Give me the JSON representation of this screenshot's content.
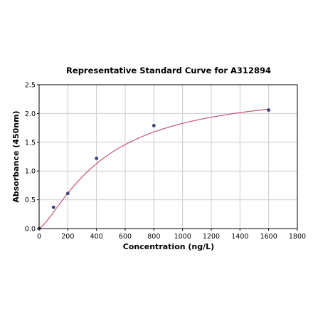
{
  "chart_data": {
    "type": "scatter",
    "title": "Representative Standard Curve for A312894",
    "xlabel": "Concentration (ng/L)",
    "ylabel": "Absorbance (450nm)",
    "xlim": [
      0,
      1800
    ],
    "ylim": [
      0,
      2.5
    ],
    "xticks": [
      0,
      200,
      400,
      600,
      800,
      1000,
      1200,
      1400,
      1600,
      1800
    ],
    "yticks": [
      0.0,
      0.5,
      1.0,
      1.5,
      2.0,
      2.5
    ],
    "xtick_labels": [
      "0",
      "200",
      "400",
      "600",
      "800",
      "1000",
      "1200",
      "1400",
      "1600",
      "1800"
    ],
    "ytick_labels": [
      "0.0",
      "0.5",
      "1.0",
      "1.5",
      "2.0",
      "2.5"
    ],
    "grid": true,
    "series": [
      {
        "values_x": [
          0,
          100,
          200,
          400,
          800,
          1600
        ],
        "values_y": [
          0.0,
          0.37,
          0.61,
          1.22,
          1.79,
          2.06
        ]
      }
    ],
    "fit_curve": {
      "model": "4PL",
      "A": 0.0,
      "B": 1.35,
      "C": 450,
      "D": 2.45,
      "color": "#c8556e"
    },
    "colors": {
      "points": "#3b3f77",
      "curve": "#c8556e",
      "grid": "#cccccc"
    }
  }
}
